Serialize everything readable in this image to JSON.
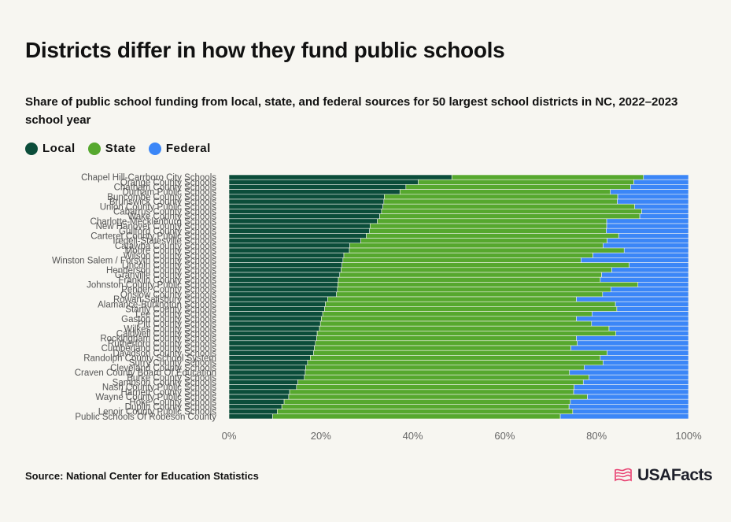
{
  "title": "Districts differ in how they fund public schools",
  "subtitle": "Share of public school funding from local, state, and federal sources for 50 largest school districts in NC, 2022–2023 school year",
  "source": "Source: National Center for Education Statistics",
  "logo_text": "USAFacts",
  "colors": {
    "local": "#0b4d3a",
    "state": "#56a82e",
    "federal": "#3b86f7",
    "background": "#f7f6f1"
  },
  "legend": [
    {
      "label": "Local",
      "color": "#0b4d3a"
    },
    {
      "label": "State",
      "color": "#56a82e"
    },
    {
      "label": "Federal",
      "color": "#3b86f7"
    }
  ],
  "chart_data": {
    "type": "bar",
    "orientation": "horizontal",
    "stacked": true,
    "xlim": [
      0,
      100
    ],
    "x_ticks": [
      "0%",
      "20%",
      "40%",
      "60%",
      "80%",
      "100%"
    ],
    "grid": false,
    "legend_position": "top-left",
    "categories": [
      "Chapel Hill-Carrboro City Schools",
      "Orange County Schools",
      "Chatham County Schools",
      "Durham Public Schools",
      "Buncombe County Schools",
      "Brunswick County Schools",
      "Union County Public Schools",
      "Cabarrus County Schools",
      "Wake County Schools",
      "Charlotte-Mecklenburg Schools",
      "New Hanover County Schools",
      "Guilford County Schools",
      "Carteret County Public Schools",
      "Iredell-Statesville Schools",
      "Catawba County Schools",
      "Moore County Schools",
      "Wilson County Schools",
      "Winston Salem / Forsyth County Schools",
      "Lincoln County Schools",
      "Henderson County Schools",
      "Granville County Schools",
      "Franklin County Schools",
      "Johnston County Public Schools",
      "Pender County Schools",
      "Onslow County Schools",
      "Rowan-Salisbury Schools",
      "Alamance-Burlington Schools",
      "Stanly County Schools",
      "Lee County Schools",
      "Gaston County Schools",
      "Pitt County Schools",
      "Wilkes County Schools",
      "Caldwell County Schools",
      "Rockingham County Schools",
      "Rutherford County Schools",
      "Cumberland County Schools",
      "Davidson County Schools",
      "Randolph County School System",
      "Surry County Schools",
      "Cleveland County Schools",
      "Craven County Board Of Education",
      "Burke County Schools",
      "Sampson County Schools",
      "Nash County Public Schools",
      "Harnett County Schools",
      "Wayne County Public Schools",
      "Hoke County Schools",
      "Duplin County Schools",
      "Lenoir County Public Schools",
      "Public Schools Of Robeson County"
    ],
    "series": [
      {
        "name": "Local",
        "values": [
          48.5,
          41.2,
          38.5,
          37.2,
          33.8,
          33.7,
          33.5,
          33.2,
          32.8,
          32.3,
          30.7,
          30.6,
          29.9,
          28.7,
          26.3,
          26.2,
          25.0,
          24.8,
          24.6,
          24.4,
          24.1,
          23.8,
          23.7,
          23.6,
          23.4,
          21.5,
          21.0,
          20.8,
          20.4,
          20.1,
          19.9,
          19.7,
          19.2,
          19.1,
          18.8,
          18.6,
          18.4,
          17.7,
          17.1,
          16.7,
          16.6,
          16.4,
          15.0,
          14.7,
          13.2,
          13.0,
          12.0,
          11.5,
          10.5,
          9.5
        ]
      },
      {
        "name": "State",
        "values": [
          41.7,
          46.9,
          48.9,
          45.8,
          50.8,
          50.8,
          54.8,
          56.6,
          56.6,
          49.9,
          51.5,
          51.5,
          54.9,
          53.6,
          55.1,
          59.8,
          54.2,
          51.8,
          62.5,
          58.9,
          57.0,
          57.0,
          65.3,
          59.5,
          57.9,
          54.1,
          63.1,
          63.6,
          58.6,
          55.5,
          59.0,
          63.0,
          65.0,
          56.5,
          57.0,
          55.8,
          63.9,
          63.1,
          64.3,
          60.6,
          57.5,
          61.9,
          62.1,
          60.4,
          61.8,
          65.0,
          62.3,
          62.5,
          64.3,
          62.6
        ]
      },
      {
        "name": "Federal",
        "values": [
          9.8,
          11.9,
          12.6,
          17.0,
          15.4,
          15.5,
          11.7,
          10.2,
          10.6,
          17.8,
          17.8,
          17.9,
          15.2,
          17.7,
          18.6,
          14.0,
          20.8,
          23.4,
          12.9,
          16.7,
          18.9,
          19.2,
          11.0,
          16.9,
          18.7,
          24.4,
          15.9,
          15.6,
          21.0,
          24.4,
          21.1,
          17.3,
          15.8,
          24.4,
          24.2,
          25.6,
          17.7,
          19.2,
          18.6,
          22.7,
          25.9,
          21.7,
          22.9,
          24.9,
          25.0,
          22.0,
          25.7,
          26.0,
          25.2,
          27.9
        ]
      }
    ]
  }
}
